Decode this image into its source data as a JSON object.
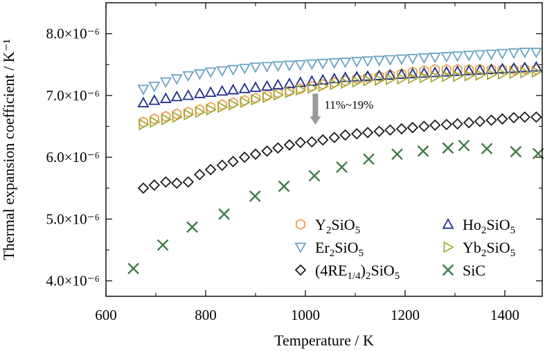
{
  "chart_data": {
    "type": "scatter",
    "xlabel": "Temperature / K",
    "ylabel": "Thermal expansion coefficient / K⁻¹",
    "xlim": [
      600,
      1475
    ],
    "ylim": [
      3.75,
      8.5
    ],
    "x_ticks": [
      600,
      800,
      1000,
      1200,
      1400
    ],
    "x_tick_labels": [
      "600",
      "800",
      "1000",
      "1200",
      "1400"
    ],
    "y_ticks": [
      4.0,
      5.0,
      6.0,
      7.0,
      8.0
    ],
    "y_tick_labels": [
      "4.0×10⁻⁶",
      "5.0×10⁻⁶",
      "6.0×10⁻⁶",
      "7.0×10⁻⁶",
      "8.0×10⁻⁶"
    ],
    "grid": false,
    "legend_position": "bottom-right",
    "annotation": {
      "text": "11%~19%",
      "x": 1020,
      "y_from": 7.03,
      "y_to": 6.55,
      "color": "#9a9a9a"
    },
    "series": [
      {
        "name": "Y2SiO5",
        "label_base": "Y",
        "label_sub1": "2",
        "label_mid": "SiO",
        "label_sub2": "5",
        "marker": "hexagon",
        "color": "#e8a050",
        "x": [
          675,
          697,
          720,
          742,
          765,
          788,
          810,
          833,
          855,
          878,
          900,
          923,
          945,
          968,
          990,
          1013,
          1035,
          1058,
          1080,
          1103,
          1125,
          1148,
          1170,
          1193,
          1215,
          1238,
          1260,
          1283,
          1305,
          1328,
          1350,
          1373,
          1395,
          1418,
          1440,
          1463
        ],
        "y": [
          6.57,
          6.62,
          6.66,
          6.7,
          6.73,
          6.77,
          6.81,
          6.85,
          6.88,
          6.92,
          6.96,
          7.0,
          7.04,
          7.07,
          7.11,
          7.15,
          7.18,
          7.21,
          7.24,
          7.27,
          7.29,
          7.31,
          7.33,
          7.35,
          7.38,
          7.4,
          7.42,
          7.42,
          7.42,
          7.42,
          7.42,
          7.42,
          7.42,
          7.42,
          7.43,
          7.42
        ]
      },
      {
        "name": "Ho2SiO5",
        "label_base": "Ho",
        "label_sub1": "2",
        "label_mid": "SiO",
        "label_sub2": "5",
        "marker": "triangle-up",
        "color": "#1c2a8a",
        "x": [
          675,
          697,
          720,
          742,
          765,
          788,
          810,
          833,
          855,
          878,
          900,
          923,
          945,
          968,
          990,
          1013,
          1035,
          1058,
          1080,
          1103,
          1125,
          1148,
          1170,
          1193,
          1215,
          1238,
          1260,
          1283,
          1305,
          1328,
          1350,
          1373,
          1395,
          1418,
          1440,
          1463
        ],
        "y": [
          6.88,
          6.92,
          6.95,
          6.98,
          7.0,
          7.03,
          7.05,
          7.07,
          7.09,
          7.11,
          7.13,
          7.15,
          7.17,
          7.19,
          7.21,
          7.23,
          7.25,
          7.27,
          7.29,
          7.3,
          7.31,
          7.32,
          7.33,
          7.34,
          7.35,
          7.36,
          7.37,
          7.38,
          7.39,
          7.4,
          7.41,
          7.42,
          7.43,
          7.44,
          7.45,
          7.46
        ]
      },
      {
        "name": "Er2SiO5",
        "label_base": "Er",
        "label_sub1": "2",
        "label_mid": "SiO",
        "label_sub2": "5",
        "marker": "triangle-down",
        "color": "#6aa2c2",
        "x": [
          675,
          697,
          720,
          742,
          765,
          788,
          810,
          833,
          855,
          878,
          900,
          923,
          945,
          968,
          990,
          1013,
          1035,
          1058,
          1080,
          1103,
          1125,
          1148,
          1170,
          1193,
          1215,
          1238,
          1260,
          1283,
          1305,
          1328,
          1350,
          1373,
          1395,
          1418,
          1440,
          1463
        ],
        "y": [
          7.1,
          7.15,
          7.22,
          7.27,
          7.32,
          7.35,
          7.38,
          7.4,
          7.42,
          7.44,
          7.46,
          7.47,
          7.48,
          7.49,
          7.5,
          7.51,
          7.52,
          7.53,
          7.54,
          7.55,
          7.56,
          7.57,
          7.58,
          7.59,
          7.6,
          7.61,
          7.62,
          7.63,
          7.64,
          7.65,
          7.66,
          7.67,
          7.68,
          7.69,
          7.7,
          7.7
        ]
      },
      {
        "name": "Yb2SiO5",
        "label_base": "Yb",
        "label_sub1": "2",
        "label_mid": "SiO",
        "label_sub2": "5",
        "marker": "triangle-right",
        "color": "#a8a83a",
        "x": [
          675,
          697,
          720,
          742,
          765,
          788,
          810,
          833,
          855,
          878,
          900,
          923,
          945,
          968,
          990,
          1013,
          1035,
          1058,
          1080,
          1103,
          1125,
          1148,
          1170,
          1193,
          1215,
          1238,
          1260,
          1283,
          1305,
          1328,
          1350,
          1373,
          1395,
          1418,
          1440,
          1463
        ],
        "y": [
          6.53,
          6.57,
          6.61,
          6.65,
          6.69,
          6.73,
          6.77,
          6.81,
          6.85,
          6.89,
          6.93,
          6.97,
          7.01,
          7.05,
          7.09,
          7.12,
          7.15,
          7.18,
          7.2,
          7.22,
          7.24,
          7.25,
          7.26,
          7.27,
          7.28,
          7.29,
          7.3,
          7.31,
          7.31,
          7.32,
          7.33,
          7.34,
          7.35,
          7.36,
          7.37,
          7.38
        ]
      },
      {
        "name": "(4RE1/4)2SiO5",
        "label_base": "(4RE",
        "label_sub1": "1/4",
        "label_mid": ")",
        "label_sub1b": "2",
        "label_mid2": "SiO",
        "label_sub2": "5",
        "marker": "diamond",
        "color": "#1a1a1a",
        "x": [
          675,
          697,
          720,
          742,
          765,
          788,
          810,
          833,
          855,
          878,
          900,
          923,
          945,
          968,
          990,
          1013,
          1035,
          1058,
          1080,
          1103,
          1125,
          1148,
          1170,
          1193,
          1215,
          1238,
          1260,
          1283,
          1305,
          1328,
          1350,
          1373,
          1395,
          1418,
          1440,
          1463
        ],
        "y": [
          5.5,
          5.55,
          5.6,
          5.58,
          5.6,
          5.72,
          5.8,
          5.87,
          5.93,
          6.0,
          6.05,
          6.1,
          6.15,
          6.2,
          6.24,
          6.25,
          6.28,
          6.32,
          6.36,
          6.38,
          6.4,
          6.42,
          6.44,
          6.46,
          6.48,
          6.5,
          6.52,
          6.53,
          6.54,
          6.56,
          6.58,
          6.6,
          6.62,
          6.64,
          6.65,
          6.65
        ]
      },
      {
        "name": "SiC",
        "label_base": "SiC",
        "marker": "x",
        "color": "#3d7a44",
        "x": [
          655,
          714,
          773,
          837,
          899,
          957,
          1018,
          1073,
          1127,
          1184,
          1236,
          1286,
          1318,
          1364,
          1422,
          1467
        ],
        "y": [
          4.2,
          4.58,
          4.87,
          5.08,
          5.37,
          5.53,
          5.7,
          5.84,
          5.97,
          6.05,
          6.1,
          6.15,
          6.19,
          6.14,
          6.09,
          6.06
        ]
      }
    ]
  }
}
